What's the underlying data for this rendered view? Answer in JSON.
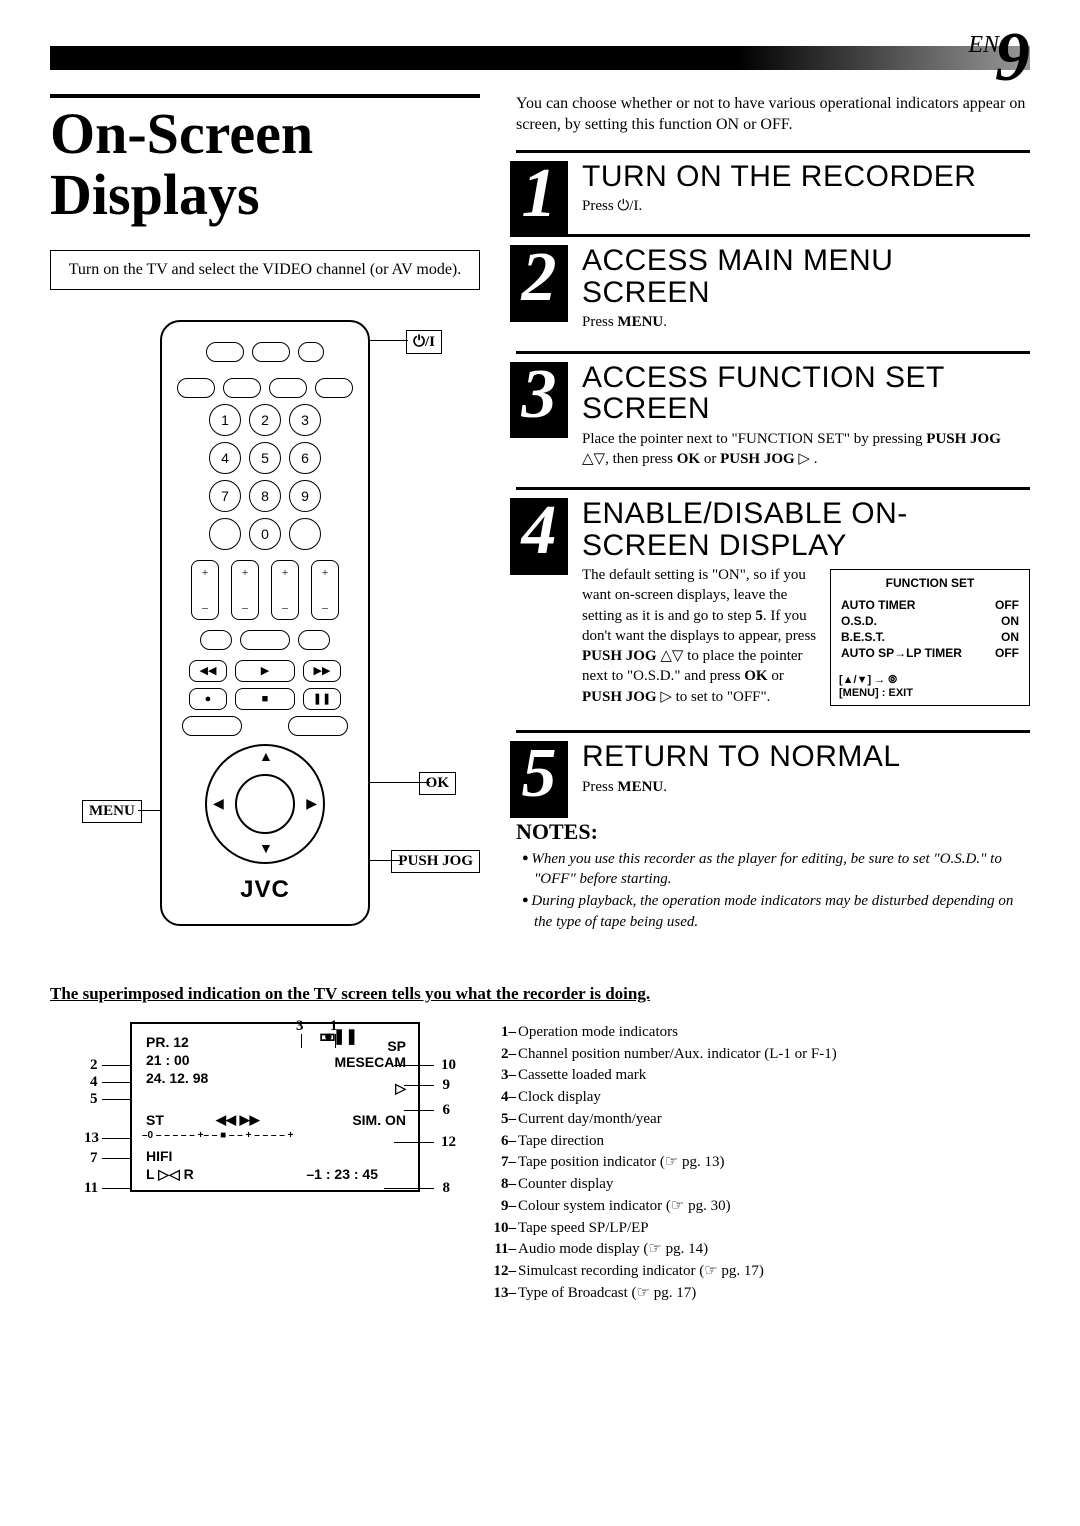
{
  "page": {
    "en": "EN",
    "num": "9"
  },
  "title": "On-Screen Displays",
  "instruction": "Turn on the TV and select the VIDEO channel (or AV mode).",
  "remote": {
    "brand": "JVC",
    "callouts": {
      "power": "⏻/I",
      "ok": "OK",
      "menu": "MENU",
      "pushjog": "PUSH JOG"
    }
  },
  "intro": "You can choose whether or not to have various operational indicators appear on screen, by setting this function ON or OFF.",
  "steps": [
    {
      "n": "1",
      "title": "TURN ON THE RECORDER",
      "body": "Press ⏻/I."
    },
    {
      "n": "2",
      "title": "ACCESS MAIN MENU SCREEN",
      "body": "Press <b>MENU</b>."
    },
    {
      "n": "3",
      "title": "ACCESS FUNCTION SET SCREEN",
      "body": "Place the pointer next to \"FUNCTION SET\" by pressing <b>PUSH JOG</b> △▽, then press <b>OK</b> or <b>PUSH JOG</b> ▷ ."
    },
    {
      "n": "4",
      "title": "ENABLE/DISABLE ON-SCREEN DISPLAY",
      "body": "The default setting is \"ON\", so if you want on-screen displays, leave the setting as it is and go to step <b>5</b>. If you don't want the displays to appear, press <b>PUSH JOG</b> △▽ to place the pointer next to \"O.S.D.\" and press <b>OK</b> or <b>PUSH JOG</b> ▷ to set to \"OFF\"."
    },
    {
      "n": "5",
      "title": "RETURN TO NORMAL",
      "body": "Press <b>MENU</b>."
    }
  ],
  "function_box": {
    "title": "FUNCTION SET",
    "items": [
      {
        "label": "AUTO TIMER",
        "value": "OFF"
      },
      {
        "label": "O.S.D.",
        "value": "ON"
      },
      {
        "label": "B.E.S.T.",
        "value": "ON"
      },
      {
        "label": "AUTO SP→LP TIMER",
        "value": "OFF"
      }
    ],
    "footer1": "[▲/▼] → ⦾",
    "footer2": "[MENU] : EXIT"
  },
  "notes": {
    "title": "NOTES:",
    "items": [
      "When you use this recorder as the player for editing, be sure to set \"O.S.D.\" to  \"OFF\" before starting.",
      "During playback, the operation mode indicators may be disturbed depending on the type of tape being used."
    ]
  },
  "bottom": {
    "heading": "The superimposed indication on the TV screen tells you what the recorder is doing.",
    "osd": {
      "pr": "PR.  12",
      "time": "21 : 00",
      "date": "24. 12. 98",
      "sp": "SP",
      "mesecam": "MESECAM",
      "st": "ST",
      "sim": "SIM. ON",
      "hifi": "HIFI",
      "lr": "L ▷◁ R",
      "counter": "–1 : 23 : 45",
      "tape_dir": "◀◀ ▶▶",
      "tape_bar": "–0 – – – – – +– – ■ – – + – – – – +"
    },
    "indicators": [
      {
        "n": "1–",
        "t": "Operation mode indicators"
      },
      {
        "n": "2–",
        "t": "Channel position number/Aux. indicator (L-1 or F-1)"
      },
      {
        "n": "3–",
        "t": "Cassette loaded mark"
      },
      {
        "n": "4–",
        "t": "Clock display"
      },
      {
        "n": "5–",
        "t": "Current day/month/year"
      },
      {
        "n": "6–",
        "t": "Tape direction"
      },
      {
        "n": "7–",
        "t": "Tape position indicator (☞ pg. 13)"
      },
      {
        "n": "8–",
        "t": "Counter display"
      },
      {
        "n": "9–",
        "t": "Colour system indicator (☞ pg. 30)"
      },
      {
        "n": "10–",
        "t": "Tape speed SP/LP/EP"
      },
      {
        "n": "11–",
        "t": "Audio mode display (☞ pg. 14)"
      },
      {
        "n": "12–",
        "t": "Simulcast recording indicator (☞ pg. 17)"
      },
      {
        "n": "13–",
        "t": "Type of Broadcast (☞ pg. 17)"
      }
    ]
  }
}
